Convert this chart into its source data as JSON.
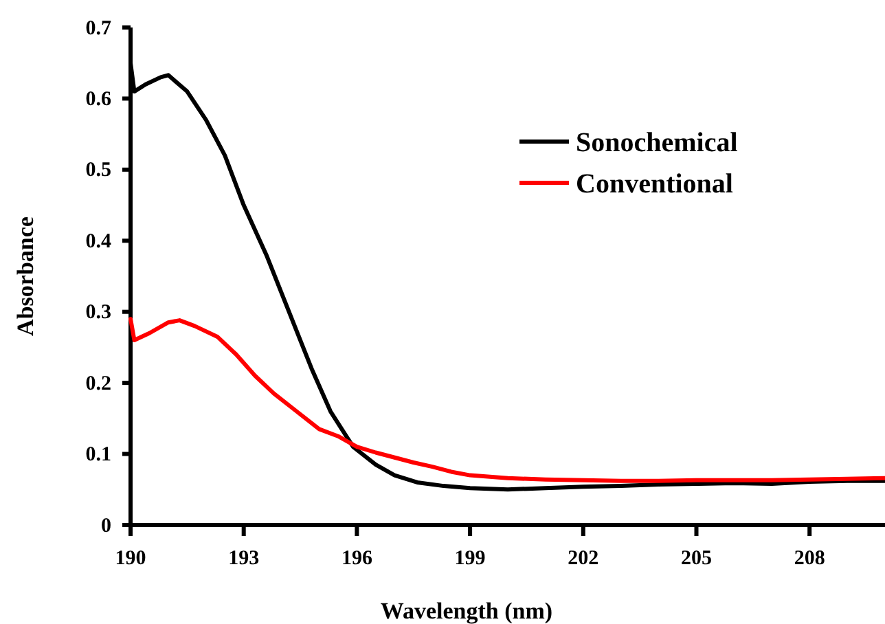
{
  "chart_data": {
    "type": "line",
    "xlabel": "Wavelength (nm)",
    "ylabel": "Absorbance",
    "xlim": [
      190,
      210
    ],
    "xticks": [
      190,
      193,
      196,
      199,
      202,
      205,
      208
    ],
    "ylim": [
      0,
      0.7
    ],
    "yticks": [
      0,
      0.1,
      0.2,
      0.3,
      0.4,
      0.5,
      0.6,
      0.7
    ],
    "legend": "top right",
    "grid": false,
    "line_style": "solid",
    "series": [
      {
        "name": "Sonochemical",
        "color": "#000000",
        "x": [
          190,
          190.1,
          190.4,
          190.8,
          191,
          191.5,
          192,
          192.5,
          193,
          193.6,
          194.2,
          194.8,
          195.3,
          195.9,
          196.5,
          197,
          197.6,
          198.3,
          199,
          200,
          201,
          202,
          203,
          204,
          205,
          206,
          207,
          208,
          209,
          210
        ],
        "values": [
          0.65,
          0.61,
          0.62,
          0.63,
          0.633,
          0.61,
          0.57,
          0.52,
          0.45,
          0.38,
          0.3,
          0.22,
          0.16,
          0.11,
          0.085,
          0.07,
          0.06,
          0.055,
          0.052,
          0.05,
          0.052,
          0.054,
          0.055,
          0.057,
          0.058,
          0.059,
          0.058,
          0.061,
          0.062,
          0.062
        ]
      },
      {
        "name": "Conventional",
        "color": "#ff0000",
        "x": [
          190,
          190.1,
          190.5,
          191,
          191.3,
          191.7,
          192.3,
          192.8,
          193.3,
          193.8,
          194.4,
          195,
          195.5,
          196,
          196.5,
          197,
          197.5,
          198,
          198.5,
          199,
          200,
          201,
          202,
          203,
          204,
          205,
          206,
          207,
          208,
          209,
          210
        ],
        "values": [
          0.29,
          0.26,
          0.27,
          0.285,
          0.288,
          0.28,
          0.265,
          0.24,
          0.21,
          0.185,
          0.16,
          0.135,
          0.125,
          0.11,
          0.102,
          0.095,
          0.088,
          0.082,
          0.075,
          0.07,
          0.066,
          0.064,
          0.063,
          0.062,
          0.062,
          0.063,
          0.063,
          0.063,
          0.064,
          0.065,
          0.066
        ]
      }
    ]
  }
}
